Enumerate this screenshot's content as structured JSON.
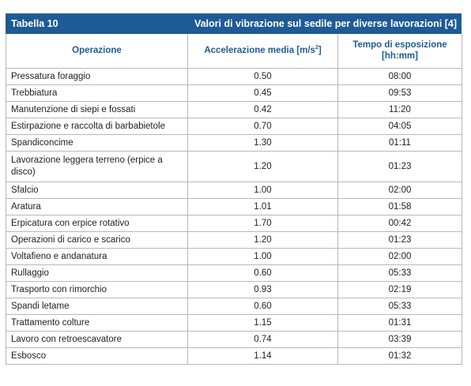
{
  "table": {
    "number": "Tabella 10",
    "title": "Valori di vibrazione sul sedile per diverse lavorazioni [4]",
    "headers": {
      "operation": "Operazione",
      "acceleration": "Accelerazione media [m/s",
      "acceleration_sup": "2",
      "acceleration_tail": "]",
      "exposure_line1": "Tempo di esposizione",
      "exposure_line2": "[hh:mm]"
    },
    "rows": [
      {
        "operation": "Pressatura foraggio",
        "acceleration": "0.50",
        "exposure": "08:00"
      },
      {
        "operation": "Trebbiatura",
        "acceleration": "0.45",
        "exposure": "09:53"
      },
      {
        "operation": "Manutenzione di siepi e fossati",
        "acceleration": "0.42",
        "exposure": "11:20"
      },
      {
        "operation": "Estirpazione e raccolta di barbabietole",
        "acceleration": "0.70",
        "exposure": "04:05"
      },
      {
        "operation": "Spandiconcime",
        "acceleration": "1.30",
        "exposure": "01:11"
      },
      {
        "operation": "Lavorazione leggera terreno (erpice a disco)",
        "acceleration": "1.20",
        "exposure": "01:23"
      },
      {
        "operation": "Sfalcio",
        "acceleration": "1.00",
        "exposure": "02:00"
      },
      {
        "operation": "Aratura",
        "acceleration": "1.01",
        "exposure": "01:58"
      },
      {
        "operation": "Erpicatura con erpice rotativo",
        "acceleration": "1.70",
        "exposure": "00:42"
      },
      {
        "operation": "Operazioni di carico e scarico",
        "acceleration": "1.20",
        "exposure": "01:23"
      },
      {
        "operation": "Voltafieno e andanatura",
        "acceleration": "1.00",
        "exposure": "02:00"
      },
      {
        "operation": "Rullaggio",
        "acceleration": "0.60",
        "exposure": "05:33"
      },
      {
        "operation": "Trasporto con rimorchio",
        "acceleration": "0.93",
        "exposure": "02:19"
      },
      {
        "operation": "Spandi letame",
        "acceleration": "0.60",
        "exposure": "05:33"
      },
      {
        "operation": "Trattamento colture",
        "acceleration": "1.15",
        "exposure": "01:31"
      },
      {
        "operation": "Lavoro con retroescavatore",
        "acceleration": "0.74",
        "exposure": "03:39"
      },
      {
        "operation": "Esbosco",
        "acceleration": "1.14",
        "exposure": "01:32"
      }
    ]
  },
  "colors": {
    "header_bg": "#1e5b95",
    "header_text": "#ffffff",
    "column_header_text": "#1e5b95",
    "grid": "#b8b8b8"
  }
}
